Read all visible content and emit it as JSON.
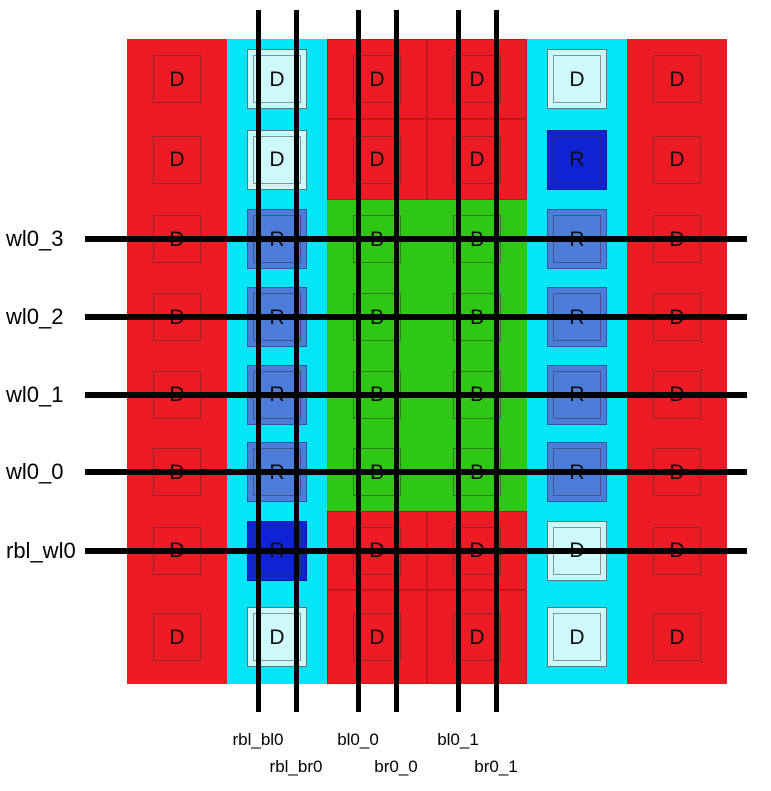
{
  "colors": {
    "red": "#ed1c24",
    "cyan": "#00e6f6",
    "green": "#2ec714",
    "replica_blue": "#4d7ddb",
    "replica_dark_blue": "#1022d6",
    "light_cyan": "#cdf8fc",
    "line": "#000000"
  },
  "array": {
    "rows": 8,
    "cols": 6,
    "cells": [
      [
        {
          "label": "D",
          "type": "dummy_red"
        },
        {
          "label": "D",
          "type": "dummy_cyan"
        },
        {
          "label": "D",
          "type": "dummy_red_mid"
        },
        {
          "label": "D",
          "type": "dummy_red_mid"
        },
        {
          "label": "D",
          "type": "dummy_cyan"
        },
        {
          "label": "D",
          "type": "dummy_red"
        }
      ],
      [
        {
          "label": "D",
          "type": "dummy_red"
        },
        {
          "label": "D",
          "type": "dummy_cyan"
        },
        {
          "label": "D",
          "type": "dummy_red_mid"
        },
        {
          "label": "D",
          "type": "dummy_red_mid"
        },
        {
          "label": "R",
          "type": "replica_dark"
        },
        {
          "label": "D",
          "type": "dummy_red"
        }
      ],
      [
        {
          "label": "D",
          "type": "dummy_red"
        },
        {
          "label": "R",
          "type": "replica"
        },
        {
          "label": "B",
          "type": "bitcell"
        },
        {
          "label": "B",
          "type": "bitcell"
        },
        {
          "label": "R",
          "type": "replica"
        },
        {
          "label": "D",
          "type": "dummy_red"
        }
      ],
      [
        {
          "label": "D",
          "type": "dummy_red"
        },
        {
          "label": "R",
          "type": "replica"
        },
        {
          "label": "B",
          "type": "bitcell"
        },
        {
          "label": "B",
          "type": "bitcell"
        },
        {
          "label": "R",
          "type": "replica"
        },
        {
          "label": "D",
          "type": "dummy_red"
        }
      ],
      [
        {
          "label": "D",
          "type": "dummy_red"
        },
        {
          "label": "R",
          "type": "replica"
        },
        {
          "label": "B",
          "type": "bitcell"
        },
        {
          "label": "B",
          "type": "bitcell"
        },
        {
          "label": "R",
          "type": "replica"
        },
        {
          "label": "D",
          "type": "dummy_red"
        }
      ],
      [
        {
          "label": "D",
          "type": "dummy_red"
        },
        {
          "label": "R",
          "type": "replica"
        },
        {
          "label": "B",
          "type": "bitcell"
        },
        {
          "label": "B",
          "type": "bitcell"
        },
        {
          "label": "R",
          "type": "replica"
        },
        {
          "label": "D",
          "type": "dummy_red"
        }
      ],
      [
        {
          "label": "D",
          "type": "dummy_red"
        },
        {
          "label": "R",
          "type": "replica_dark"
        },
        {
          "label": "D",
          "type": "dummy_red_mid"
        },
        {
          "label": "D",
          "type": "dummy_red_mid"
        },
        {
          "label": "D",
          "type": "dummy_cyan"
        },
        {
          "label": "D",
          "type": "dummy_red"
        }
      ],
      [
        {
          "label": "D",
          "type": "dummy_red"
        },
        {
          "label": "D",
          "type": "dummy_cyan"
        },
        {
          "label": "D",
          "type": "dummy_red_mid"
        },
        {
          "label": "D",
          "type": "dummy_red_mid"
        },
        {
          "label": "D",
          "type": "dummy_cyan"
        },
        {
          "label": "D",
          "type": "dummy_red"
        }
      ]
    ]
  },
  "wordlines": [
    {
      "label": "wl0_3"
    },
    {
      "label": "wl0_2"
    },
    {
      "label": "wl0_1"
    },
    {
      "label": "wl0_0"
    },
    {
      "label": "rbl_wl0"
    }
  ],
  "bitlines": [
    {
      "label": "rbl_bl0",
      "pair": 0,
      "side": "bl"
    },
    {
      "label": "rbl_br0",
      "pair": 0,
      "side": "br"
    },
    {
      "label": "bl0_0",
      "pair": 1,
      "side": "bl"
    },
    {
      "label": "br0_0",
      "pair": 1,
      "side": "br"
    },
    {
      "label": "bl0_1",
      "pair": 2,
      "side": "bl"
    },
    {
      "label": "br0_1",
      "pair": 2,
      "side": "br"
    }
  ]
}
